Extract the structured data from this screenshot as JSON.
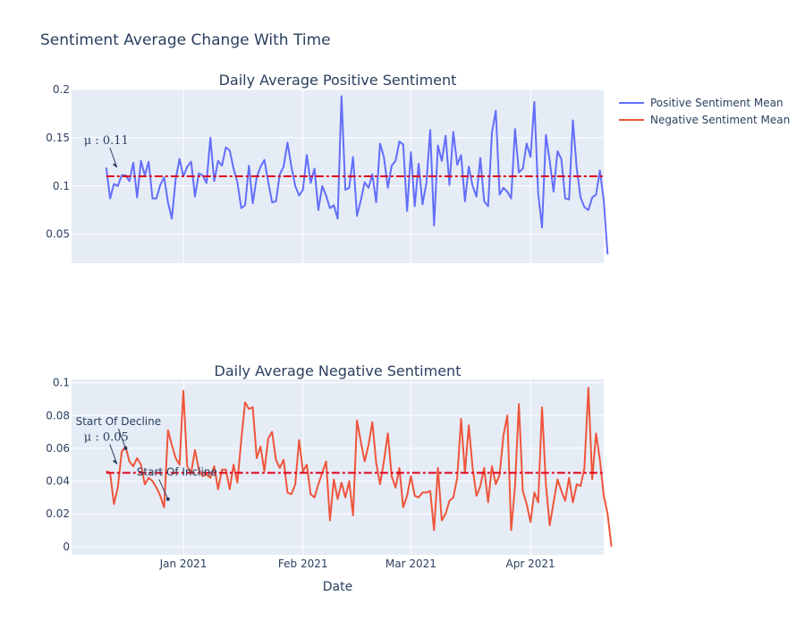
{
  "title": "Sentiment Average Change With Time",
  "legend": [
    {
      "label": "Positive Sentiment Mean",
      "color": "#636efa"
    },
    {
      "label": "Negative Sentiment Mean",
      "color": "#ef553b"
    }
  ],
  "x_axis": {
    "label": "Date",
    "ticks": [
      {
        "date": "2021-01-01",
        "label": "Jan 2021"
      },
      {
        "date": "2021-02-01",
        "label": "Feb 2021"
      },
      {
        "date": "2021-03-01",
        "label": "Mar 2021"
      },
      {
        "date": "2021-04-01",
        "label": "Apr 2021"
      }
    ],
    "range": [
      "2020-12-03",
      "2021-04-20"
    ]
  },
  "colors": {
    "plot_bg": "#e5ecf6",
    "grid": "#ffffff",
    "mean_line": "#e0001b"
  },
  "chart_data": [
    {
      "type": "line",
      "title": "Daily Average Positive Sentiment",
      "series_name": "Positive Sentiment Mean",
      "color": "#636efa",
      "ylim": [
        0.02,
        0.2
      ],
      "yticks": [
        0.05,
        0.1,
        0.15,
        0.2
      ],
      "ytick_labels": [
        "0.05",
        "0.1",
        "0.15",
        "0.2"
      ],
      "x_start": "2020-12-12",
      "mean": 0.11,
      "mean_label": "μ : 0.11",
      "values": [
        0.119,
        0.087,
        0.102,
        0.1,
        0.111,
        0.111,
        0.105,
        0.124,
        0.088,
        0.126,
        0.111,
        0.125,
        0.087,
        0.087,
        0.101,
        0.109,
        0.083,
        0.066,
        0.107,
        0.128,
        0.11,
        0.12,
        0.125,
        0.089,
        0.113,
        0.111,
        0.103,
        0.15,
        0.105,
        0.126,
        0.121,
        0.14,
        0.137,
        0.118,
        0.104,
        0.077,
        0.08,
        0.121,
        0.082,
        0.109,
        0.12,
        0.127,
        0.104,
        0.083,
        0.084,
        0.112,
        0.12,
        0.145,
        0.12,
        0.1,
        0.09,
        0.096,
        0.132,
        0.103,
        0.118,
        0.075,
        0.1,
        0.09,
        0.077,
        0.08,
        0.066,
        0.193,
        0.096,
        0.098,
        0.13,
        0.069,
        0.085,
        0.104,
        0.098,
        0.112,
        0.083,
        0.144,
        0.13,
        0.098,
        0.121,
        0.126,
        0.146,
        0.143,
        0.074,
        0.135,
        0.079,
        0.123,
        0.081,
        0.103,
        0.158,
        0.059,
        0.142,
        0.126,
        0.152,
        0.101,
        0.156,
        0.122,
        0.132,
        0.084,
        0.12,
        0.1,
        0.089,
        0.129,
        0.084,
        0.079,
        0.155,
        0.178,
        0.091,
        0.098,
        0.094,
        0.087,
        0.159,
        0.114,
        0.118,
        0.144,
        0.13,
        0.187,
        0.092,
        0.057,
        0.153,
        0.126,
        0.094,
        0.136,
        0.128,
        0.087,
        0.086,
        0.168,
        0.118,
        0.088,
        0.078,
        0.075,
        0.088,
        0.091,
        0.116,
        0.085,
        0.029
      ]
    },
    {
      "type": "line",
      "title": "Daily Average Negative Sentiment",
      "series_name": "Negative Sentiment Mean",
      "color": "#ef553b",
      "ylim": [
        -0.005,
        0.102
      ],
      "yticks": [
        0,
        0.02,
        0.04,
        0.06,
        0.08,
        0.1
      ],
      "ytick_labels": [
        "0",
        "0.02",
        "0.04",
        "0.06",
        "0.08",
        "0.1"
      ],
      "x_start": "2020-12-12",
      "mean": 0.045,
      "mean_label": "μ : 0.05",
      "annotations": [
        {
          "text": "Start Of Decline",
          "date": "2020-12-17",
          "value": 0.06
        },
        {
          "text": "Start Of Incline",
          "date": "2020-12-28",
          "value": 0.029
        }
      ],
      "values": [
        0.046,
        0.045,
        0.026,
        0.036,
        0.058,
        0.061,
        0.052,
        0.049,
        0.054,
        0.05,
        0.038,
        0.042,
        0.04,
        0.036,
        0.031,
        0.024,
        0.071,
        0.062,
        0.054,
        0.05,
        0.095,
        0.049,
        0.045,
        0.059,
        0.047,
        0.043,
        0.044,
        0.042,
        0.049,
        0.035,
        0.047,
        0.047,
        0.035,
        0.05,
        0.039,
        0.065,
        0.088,
        0.084,
        0.085,
        0.054,
        0.061,
        0.046,
        0.066,
        0.07,
        0.053,
        0.048,
        0.053,
        0.033,
        0.032,
        0.038,
        0.065,
        0.046,
        0.05,
        0.032,
        0.03,
        0.038,
        0.045,
        0.052,
        0.016,
        0.041,
        0.029,
        0.039,
        0.03,
        0.04,
        0.019,
        0.077,
        0.064,
        0.052,
        0.062,
        0.076,
        0.051,
        0.038,
        0.052,
        0.069,
        0.043,
        0.036,
        0.048,
        0.024,
        0.031,
        0.043,
        0.031,
        0.03,
        0.033,
        0.033,
        0.034,
        0.01,
        0.048,
        0.016,
        0.02,
        0.028,
        0.03,
        0.042,
        0.078,
        0.045,
        0.074,
        0.048,
        0.031,
        0.037,
        0.048,
        0.027,
        0.049,
        0.038,
        0.044,
        0.068,
        0.08,
        0.01,
        0.037,
        0.087,
        0.034,
        0.026,
        0.015,
        0.033,
        0.027,
        0.085,
        0.038,
        0.013,
        0.027,
        0.041,
        0.034,
        0.028,
        0.042,
        0.027,
        0.038,
        0.037,
        0.048,
        0.097,
        0.041,
        0.069,
        0.053,
        0.031,
        0.02,
        0.0
      ]
    }
  ]
}
